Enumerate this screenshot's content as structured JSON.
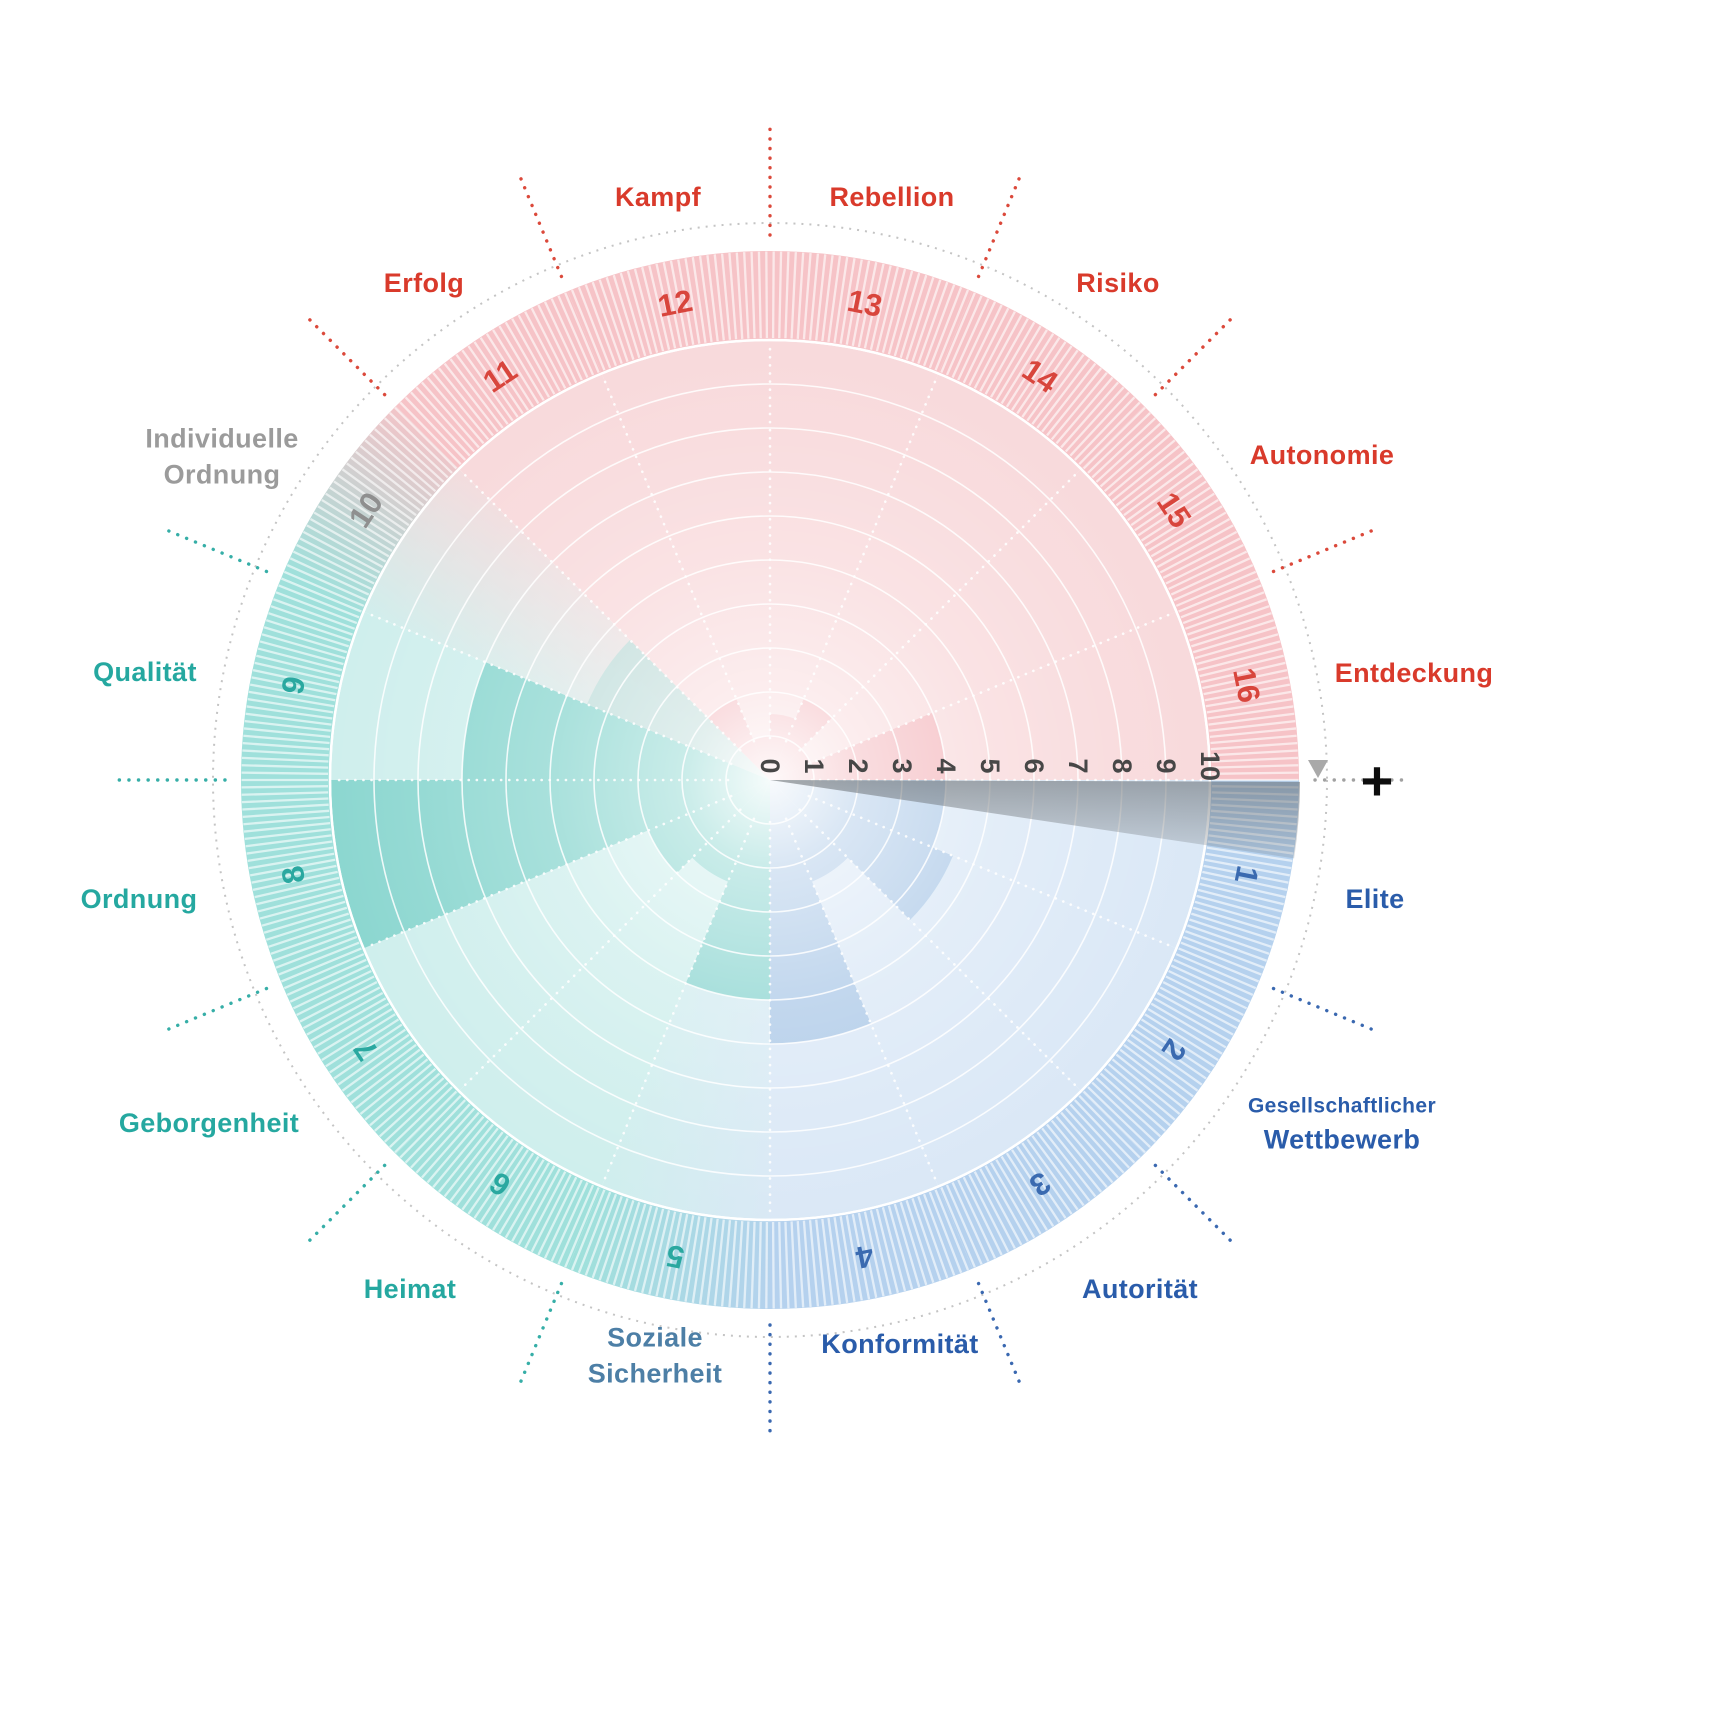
{
  "chart_data": {
    "type": "polar-sector",
    "title": "",
    "description": "Values wheel (Werte-Rad) with 16 labeled sectors, radial scale 0-10, color zones red/teal/blue with gradient transitions",
    "radial_axis": {
      "min": 0,
      "max": 10,
      "tick_labels": [
        "0",
        "1",
        "2",
        "3",
        "4",
        "5",
        "6",
        "7",
        "8",
        "9",
        "10"
      ],
      "plus_label": "+"
    },
    "zones": {
      "red": {
        "label_color": "#d93a2b",
        "numeral_color": "#d8453c",
        "bg": "#f8d8da",
        "rim": "#f6c3c7",
        "fill": "#f2afb5",
        "dotted": "#d93a2b"
      },
      "teal": {
        "label_color": "#25a8a0",
        "numeral_color": "#2aa8a0",
        "bg": "#cdeeec",
        "rim": "#9fe0db",
        "fill": "#7fd1cb",
        "dotted": "#25a8a0"
      },
      "blue": {
        "label_color": "#2a5caa",
        "numeral_color": "#3a6ab0",
        "bg": "#d9e7f6",
        "rim": "#b5d1ee",
        "fill": "#a5c4e6",
        "dotted": "#2a5caa"
      },
      "gray": {
        "label_color": "#9b9b9b",
        "numeral_color": "#8f8f8f",
        "bg": "#e3efee",
        "rim": "#cfe3e1",
        "fill": "#b7d9d6",
        "dotted": "#9a9a9a"
      }
    },
    "sectors": [
      {
        "num": "1",
        "label": "Elite",
        "zone": "blue",
        "value": 4
      },
      {
        "num": "2",
        "label": "Gesellschaftlicher\nWettbewerb",
        "zone": "blue",
        "value": 4.5
      },
      {
        "num": "3",
        "label": "Autorität",
        "zone": "blue",
        "value": 2.5
      },
      {
        "num": "4",
        "label": "Konformität",
        "zone": "blue",
        "value": 6
      },
      {
        "num": "5",
        "label": "Soziale\nSicherheit",
        "zone": "teal",
        "label_color": "#4d7fa6",
        "value": 5
      },
      {
        "num": "6",
        "label": "Heimat",
        "zone": "teal",
        "value": 2.5
      },
      {
        "num": "7",
        "label": "Geborgenheit",
        "zone": "teal",
        "value": 3
      },
      {
        "num": "8",
        "label": "Ordnung",
        "zone": "teal",
        "value": 10
      },
      {
        "num": "9",
        "label": "Qualität",
        "zone": "teal",
        "value": 7
      },
      {
        "num": "10",
        "label": "Individuelle\nOrdnung",
        "zone": "gray",
        "value": 4.5
      },
      {
        "num": "11",
        "label": "Erfolg",
        "zone": "red",
        "value": 2
      },
      {
        "num": "12",
        "label": "Kampf",
        "zone": "red",
        "value": 1
      },
      {
        "num": "13",
        "label": "Rebellion",
        "zone": "red",
        "value": 1.5
      },
      {
        "num": "14",
        "label": "Risiko",
        "zone": "red",
        "value": 2
      },
      {
        "num": "15",
        "label": "Autonomie",
        "zone": "red",
        "value": 1
      },
      {
        "num": "16",
        "label": "Entdeckung",
        "zone": "red",
        "value": 4
      }
    ]
  }
}
